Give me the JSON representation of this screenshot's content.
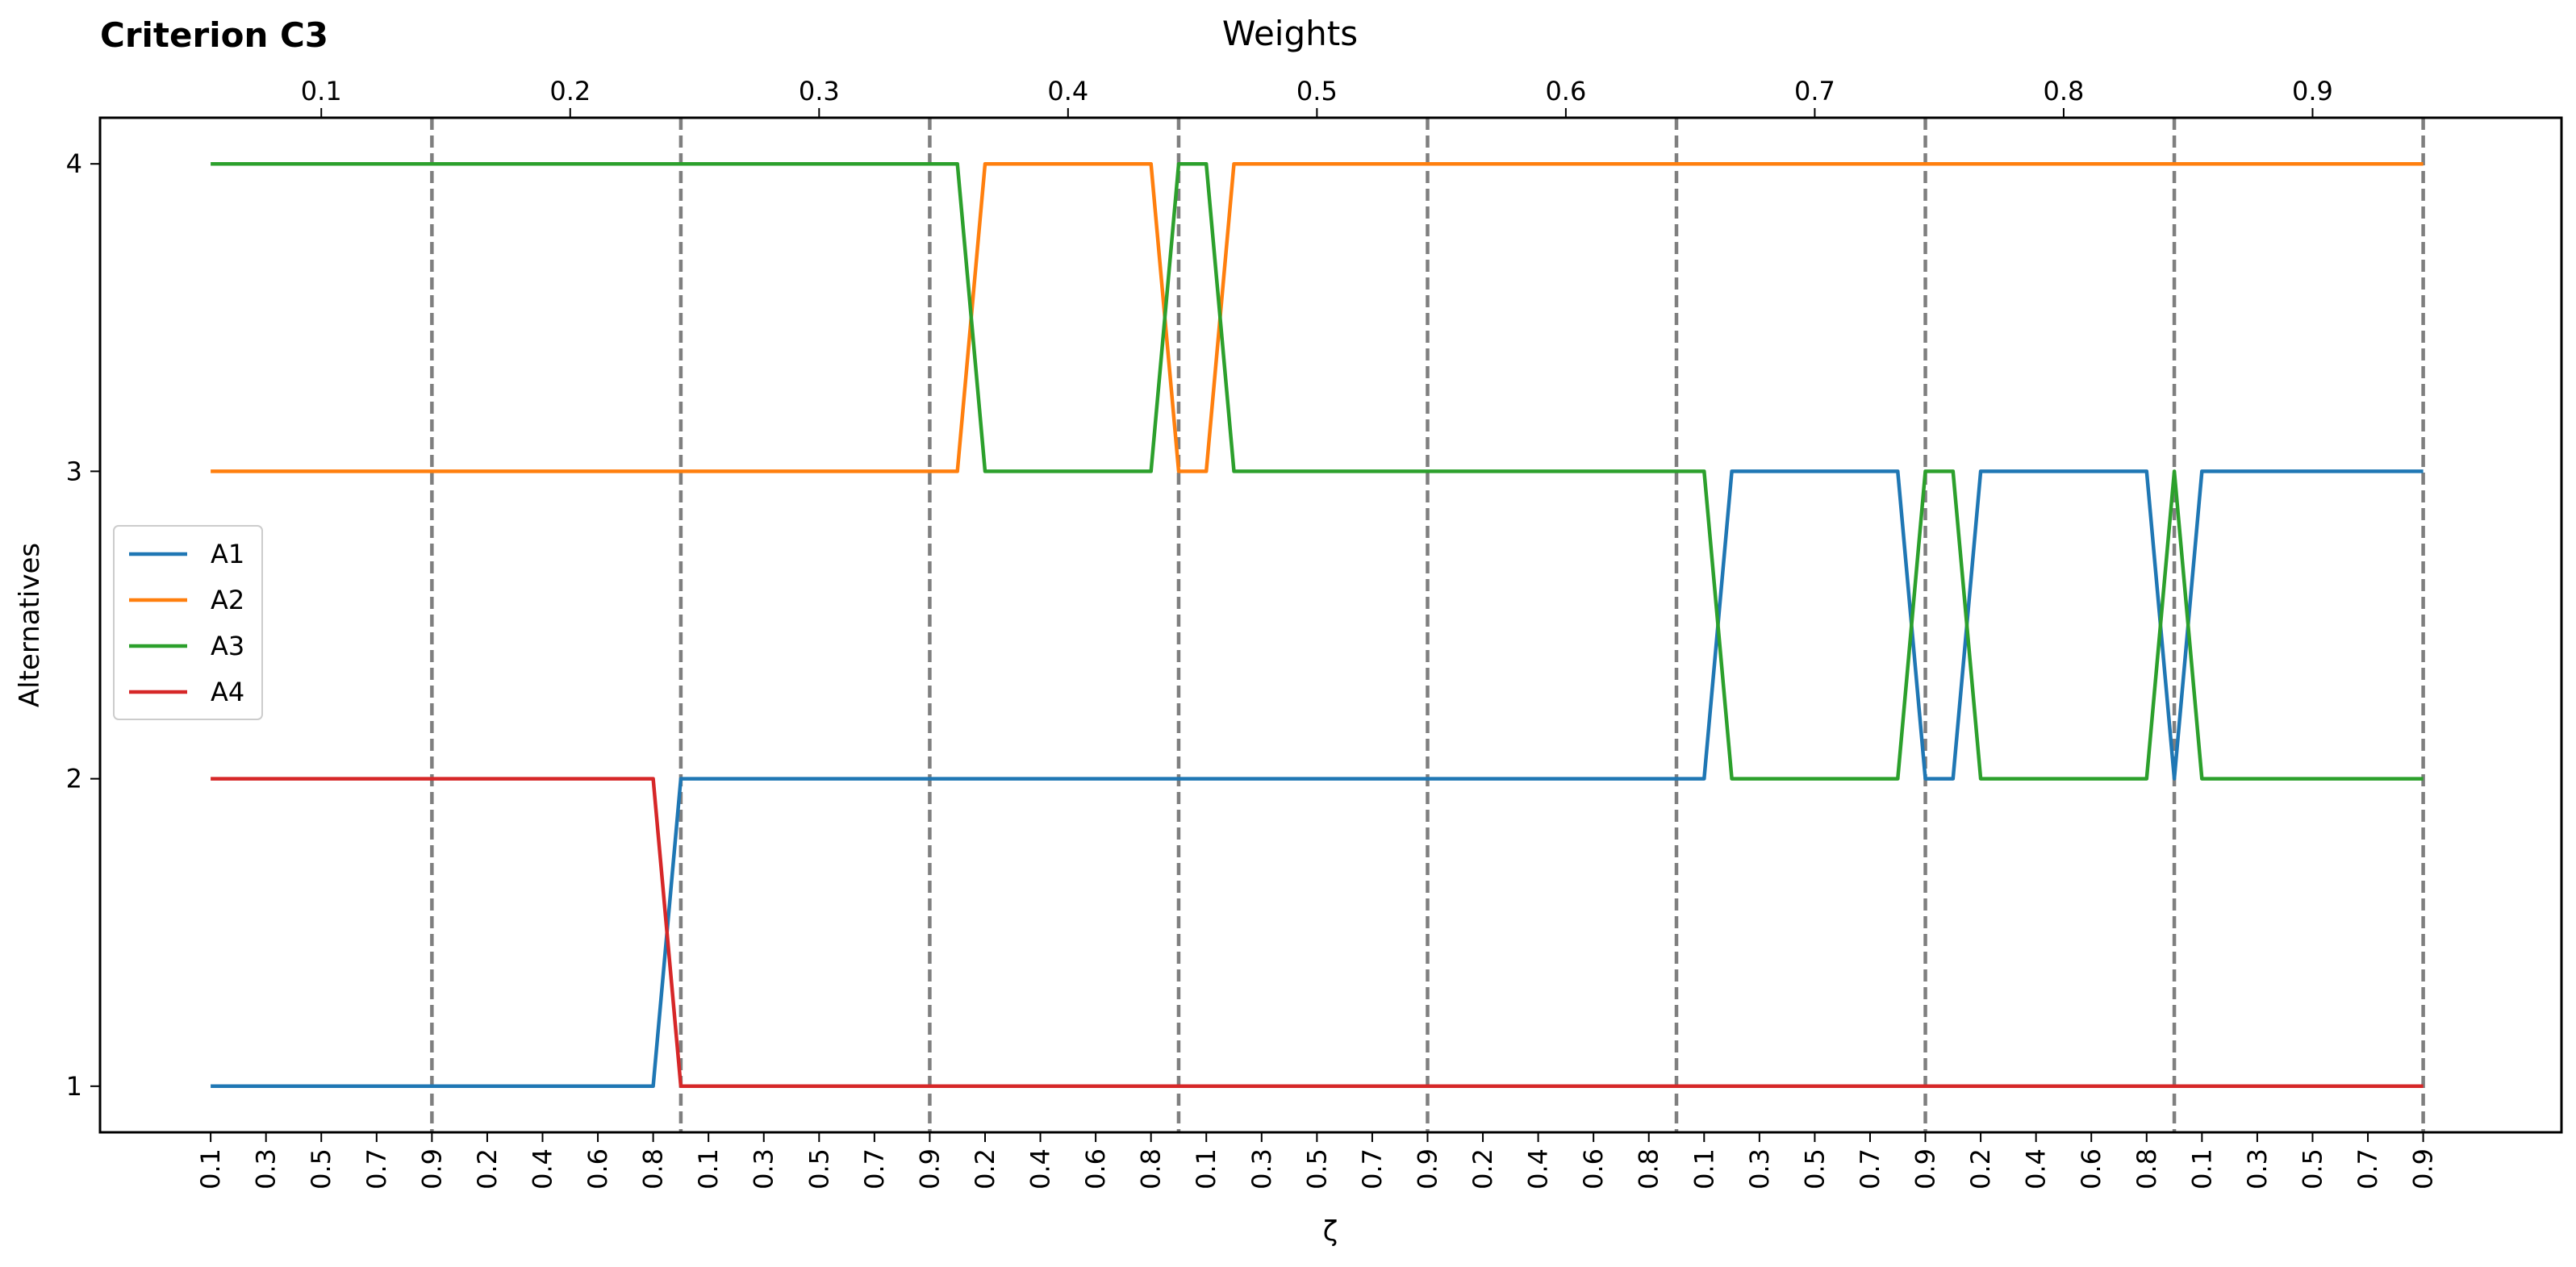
{
  "chart_data": {
    "type": "line",
    "title": "Criterion C3",
    "xlabel": "ζ",
    "ylabel": "Alternatives",
    "top_axis_label": "Weights",
    "top_ticks": [
      "0.1",
      "0.2",
      "0.3",
      "0.4",
      "0.5",
      "0.6",
      "0.7",
      "0.8",
      "0.9"
    ],
    "x_tick_labels": [
      "0.1",
      "0.3",
      "0.5",
      "0.7",
      "0.9",
      "0.2",
      "0.4",
      "0.6",
      "0.8",
      "0.1",
      "0.3",
      "0.5",
      "0.7",
      "0.9",
      "0.2",
      "0.4",
      "0.6",
      "0.8",
      "0.1",
      "0.3",
      "0.5",
      "0.7",
      "0.9",
      "0.2",
      "0.4",
      "0.6",
      "0.8",
      "0.1",
      "0.3",
      "0.5",
      "0.7",
      "0.9",
      "0.2",
      "0.4",
      "0.6",
      "0.8",
      "0.1",
      "0.3",
      "0.5",
      "0.7",
      "0.9"
    ],
    "yticks": [
      1,
      2,
      3,
      4
    ],
    "ylim": [
      0.85,
      4.15
    ],
    "xlim": [
      -4,
      85
    ],
    "group_boundaries": [
      8,
      17,
      26,
      35,
      44,
      53,
      62,
      71,
      80
    ],
    "legend": {
      "position": "center-left",
      "entries": [
        "A1",
        "A2",
        "A3",
        "A4"
      ]
    },
    "series": [
      {
        "name": "A1",
        "color": "#1f77b4",
        "points": [
          [
            0,
            1
          ],
          [
            16,
            1
          ],
          [
            17,
            2
          ],
          [
            54,
            2
          ],
          [
            55,
            3
          ],
          [
            61,
            3
          ],
          [
            62,
            2
          ],
          [
            63,
            2
          ],
          [
            64,
            3
          ],
          [
            70,
            3
          ],
          [
            71,
            2
          ],
          [
            72,
            3
          ],
          [
            80,
            3
          ]
        ]
      },
      {
        "name": "A2",
        "color": "#ff7f0e",
        "points": [
          [
            0,
            3
          ],
          [
            27,
            3
          ],
          [
            28,
            4
          ],
          [
            34,
            4
          ],
          [
            35,
            3
          ],
          [
            36,
            3
          ],
          [
            37,
            4
          ],
          [
            80,
            4
          ]
        ]
      },
      {
        "name": "A3",
        "color": "#2ca02c",
        "points": [
          [
            0,
            4
          ],
          [
            27,
            4
          ],
          [
            28,
            3
          ],
          [
            34,
            3
          ],
          [
            35,
            4
          ],
          [
            36,
            4
          ],
          [
            37,
            3
          ],
          [
            54,
            3
          ],
          [
            55,
            2
          ],
          [
            61,
            2
          ],
          [
            62,
            3
          ],
          [
            63,
            3
          ],
          [
            64,
            2
          ],
          [
            70,
            2
          ],
          [
            71,
            3
          ],
          [
            72,
            2
          ],
          [
            80,
            2
          ]
        ]
      },
      {
        "name": "A4",
        "color": "#d62728",
        "points": [
          [
            0,
            2
          ],
          [
            16,
            2
          ],
          [
            17,
            1
          ],
          [
            80,
            1
          ]
        ]
      }
    ]
  }
}
